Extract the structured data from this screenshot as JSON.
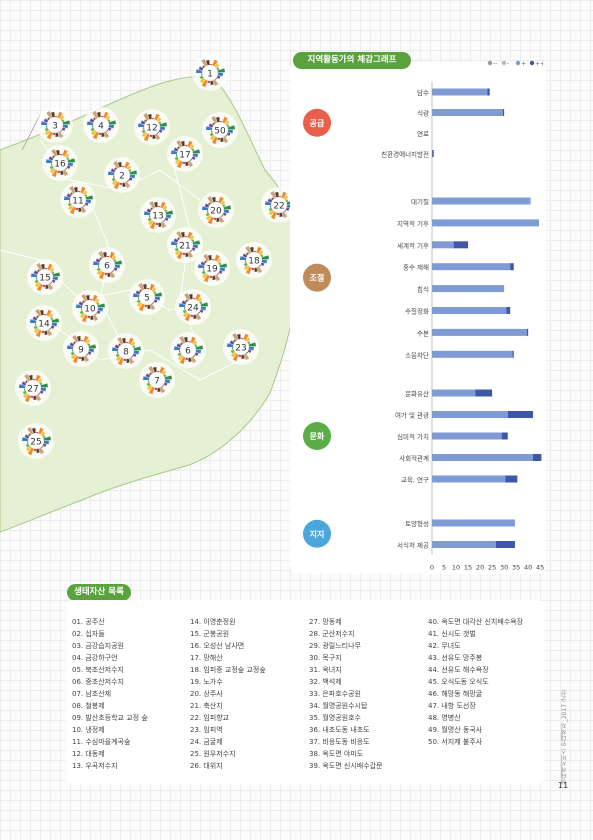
{
  "map": {
    "site_numbers": [
      "1",
      "2",
      "3",
      "4",
      "5",
      "6",
      "6",
      "7",
      "8",
      "9",
      "10",
      "11",
      "12",
      "13",
      "14",
      "15",
      "16",
      "17",
      "18",
      "19",
      "20",
      "21",
      "22",
      "23",
      "24",
      "25",
      "27",
      "50"
    ]
  },
  "chart_title": "지역활동가의 체감그래프",
  "legend": [
    "--",
    "-",
    "+",
    "++"
  ],
  "colors": {
    "accent_green": "#5aa23e",
    "bar_light": "#7f9bd6",
    "bar_dark": "#3e57a8",
    "group_supply": "#e8604c",
    "group_regulation": "#c08a5a",
    "group_culture": "#5bab46",
    "group_support": "#4ca6dc"
  },
  "chart_data": {
    "type": "bar",
    "orientation": "horizontal",
    "x_ticks": [
      0,
      5,
      10,
      15,
      20,
      25,
      30,
      35,
      40,
      45
    ],
    "xlim": [
      0,
      47
    ],
    "groups": [
      {
        "name": "공급",
        "items": [
          {
            "label": "담수",
            "light": 23,
            "dark": 1
          },
          {
            "label": "식량",
            "light": 29.5,
            "dark": 0.5
          },
          {
            "label": "연료",
            "light": 0,
            "dark": 0
          },
          {
            "label": "친환경에너지발전",
            "light": 0,
            "dark": 0.7
          }
        ]
      },
      {
        "name": "조절",
        "items": [
          {
            "label": "대기질",
            "light": 41,
            "dark": 0
          },
          {
            "label": "지역적 기후",
            "light": 44.5,
            "dark": 0
          },
          {
            "label": "세계적 기후",
            "light": 9,
            "dark": 6
          },
          {
            "label": "홍수 재해",
            "light": 32.5,
            "dark": 1.5
          },
          {
            "label": "침식",
            "light": 30,
            "dark": 0
          },
          {
            "label": "수질정화",
            "light": 31,
            "dark": 1.5
          },
          {
            "label": "수분",
            "light": 39.5,
            "dark": 0.5
          },
          {
            "label": "소음차단",
            "light": 33.5,
            "dark": 0.5
          }
        ]
      },
      {
        "name": "문화",
        "items": [
          {
            "label": "문화유산",
            "light": 18,
            "dark": 7
          },
          {
            "label": "여가 및 관광",
            "light": 31.5,
            "dark": 10.5
          },
          {
            "label": "심미적 가치",
            "light": 29,
            "dark": 2.5
          },
          {
            "label": "사회적관계",
            "light": 42,
            "dark": 3.5
          },
          {
            "label": "교육, 연구",
            "light": 30.5,
            "dark": 5
          }
        ]
      },
      {
        "name": "지지",
        "items": [
          {
            "label": "토양형성",
            "light": 34.5,
            "dark": 0
          },
          {
            "label": "서식처 제공",
            "light": 26.5,
            "dark": 8
          }
        ]
      }
    ]
  },
  "list_title": "생태자산 목록",
  "list": [
    [
      "01. 공주산",
      "02. 십자들",
      "03. 금강습지공원",
      "04. 금강하구언",
      "05. 북초산저수지",
      "06. 중초산저수지",
      "07. 남초산제",
      "08. 철봉제",
      "09. 발산초등학교 교정 숲",
      "10. 냉정제",
      "11. 수심마을계곡숲",
      "12. 대동제",
      "13. 우곡저수지"
    ],
    [
      "14. 이영춘정원",
      "15. 군봉공원",
      "16. 오성산 남사면",
      "17. 망해산",
      "18. 임피중 교정숲 교정숲",
      "19. 노가수",
      "20. 상주사",
      "21. 축산지",
      "22. 임피향교",
      "23. 임피역",
      "24. 금굴제",
      "25. 원우저수지",
      "26. 대위지"
    ],
    [
      "27. 망동제",
      "28. 군산저수지",
      "29. 광릴느티나무",
      "30. 목구지",
      "31. 옥녀지",
      "32. 백석제",
      "33. 은파호수공원",
      "34. 월명공원수시탑",
      "35. 월명공원호수",
      "36. 내초도동 내초도",
      "37. 비응도동 비응도",
      "38. 옥도면 야미도",
      "39. 옥도면 신시배수갑문"
    ],
    [
      "40. 옥도면 대각산 신치배수욕장",
      "41. 신시도 갯벌",
      "42. 무녀도",
      "43. 선유도 망주봉",
      "44. 선유도 해수욕장",
      "45. 오식도동 오식도",
      "46. 해망동 해망굴",
      "47. 내항 도선장",
      "48. 영병산",
      "49. 월명산 동국사",
      "50. 서지제 붙주사"
    ]
  ],
  "side_text": "생태계서비스 안내책자_2017 군산",
  "page_number": "11"
}
